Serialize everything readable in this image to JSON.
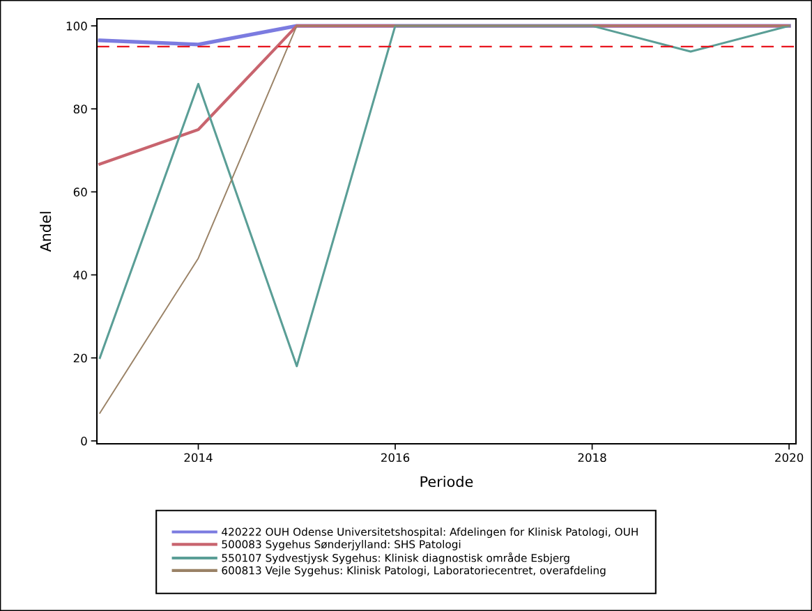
{
  "chart_data": {
    "type": "line",
    "xlabel": "Periode",
    "ylabel": "Andel",
    "x": [
      2013,
      2014,
      2015,
      2016,
      2017,
      2018,
      2019,
      2020
    ],
    "series": [
      {
        "name": "420222 OUH Odense Universitetshospital: Afdelingen for Klinisk Patologi, OUH",
        "color": "#7b7be0",
        "values": [
          96.5,
          95.5,
          100,
          100,
          100,
          100,
          100,
          100
        ]
      },
      {
        "name": "500083 Sygehus Sønderjylland: SHS Patologi",
        "color": "#c8646e",
        "values": [
          66.7,
          75,
          100,
          100,
          100,
          100,
          100,
          100
        ]
      },
      {
        "name": "550107 Sydvestjysk Sygehus: Klinisk diagnostisk område Esbjerg",
        "color": "#5a9e96",
        "values": [
          20,
          86,
          18,
          100,
          100,
          100,
          93.8,
          100
        ]
      },
      {
        "name": "600813 Vejle Sygehus: Klinisk Patologi, Laboratoriecentret, overafdeling",
        "color": "#9a8266",
        "values": [
          6.7,
          44,
          100,
          100,
          100,
          100,
          100,
          100
        ]
      }
    ],
    "xlim": [
      2012.97,
      2020.07
    ],
    "ylim": [
      -0.7,
      101.7
    ],
    "xticks": [
      2014,
      2016,
      2018,
      2020
    ],
    "yticks": [
      0,
      20,
      40,
      60,
      80,
      100
    ],
    "ref_lines": [
      {
        "axis": "y",
        "value": 95,
        "color": "#e8141e",
        "line_style": "dashed"
      }
    ],
    "grid": false,
    "legend": "bottom",
    "marker": "none",
    "line_style": "solid"
  }
}
